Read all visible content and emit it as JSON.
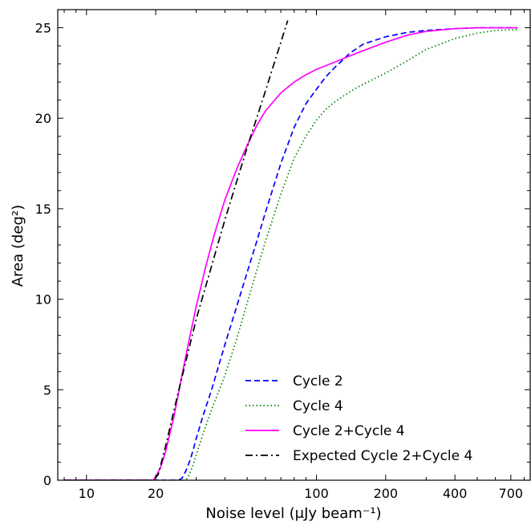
{
  "chart_data": {
    "type": "line",
    "xlabel": "Noise level (μJy beam⁻¹)",
    "ylabel": "Area (deg²)",
    "x_scale": "log",
    "xlim": [
      7.5,
      850
    ],
    "ylim": [
      0,
      26
    ],
    "x_ticks": [
      10,
      20,
      100,
      200,
      400,
      700
    ],
    "y_ticks": [
      0,
      5,
      10,
      15,
      20,
      25
    ],
    "legend_position": "lower-right",
    "series": [
      {
        "name": "Cycle 2",
        "style": "dashed",
        "color": "#0000ff",
        "x": [
          8,
          20,
          25,
          26,
          27,
          28,
          29,
          30,
          32,
          35,
          40,
          45,
          50,
          55,
          60,
          70,
          80,
          90,
          100,
          110,
          120,
          140,
          160,
          200,
          250,
          300,
          400,
          500,
          600,
          750
        ],
        "y": [
          0,
          0,
          0,
          0.1,
          0.5,
          1.0,
          1.6,
          2.3,
          3.5,
          5.0,
          7.5,
          9.6,
          11.5,
          13.2,
          14.8,
          17.5,
          19.5,
          20.8,
          21.6,
          22.3,
          22.8,
          23.6,
          24.1,
          24.5,
          24.75,
          24.85,
          24.95,
          25.0,
          25.0,
          25.0
        ]
      },
      {
        "name": "Cycle 4",
        "style": "dotted",
        "color": "#008000",
        "x": [
          8,
          25,
          27,
          28,
          29,
          30,
          32,
          35,
          40,
          45,
          50,
          55,
          60,
          70,
          80,
          90,
          100,
          110,
          120,
          130,
          150,
          200,
          250,
          300,
          400,
          500,
          600,
          750
        ],
        "y": [
          0,
          0,
          0,
          0.3,
          0.8,
          1.4,
          2.5,
          3.9,
          5.8,
          7.8,
          9.8,
          11.6,
          13.2,
          15.8,
          17.8,
          19.0,
          19.9,
          20.5,
          20.9,
          21.2,
          21.7,
          22.5,
          23.2,
          23.8,
          24.4,
          24.7,
          24.85,
          24.9
        ]
      },
      {
        "name": "Cycle 2+Cycle 4",
        "style": "solid",
        "color": "#ff00ff",
        "x": [
          8,
          19.5,
          20,
          21,
          22,
          24,
          26,
          28,
          30,
          33,
          36,
          40,
          45,
          50,
          55,
          60,
          70,
          80,
          90,
          100,
          120,
          150,
          200,
          250,
          300,
          400,
          500,
          600,
          750
        ],
        "y": [
          0,
          0,
          0.2,
          0.7,
          1.5,
          3.5,
          5.8,
          7.8,
          9.6,
          11.8,
          13.6,
          15.5,
          17.2,
          18.5,
          19.6,
          20.4,
          21.4,
          22.0,
          22.4,
          22.7,
          23.1,
          23.6,
          24.2,
          24.6,
          24.8,
          24.95,
          25.0,
          25.0,
          25.0
        ]
      },
      {
        "name": "Expected Cycle 2+Cycle 4",
        "style": "dashdot",
        "color": "#000000",
        "x": [
          8,
          19.5,
          20.5,
          22,
          25,
          30,
          40,
          50,
          60,
          70,
          75
        ],
        "y": [
          0,
          0,
          0.3,
          1.8,
          4.8,
          8.9,
          14.4,
          18.4,
          21.5,
          24.2,
          25.4
        ]
      }
    ]
  }
}
